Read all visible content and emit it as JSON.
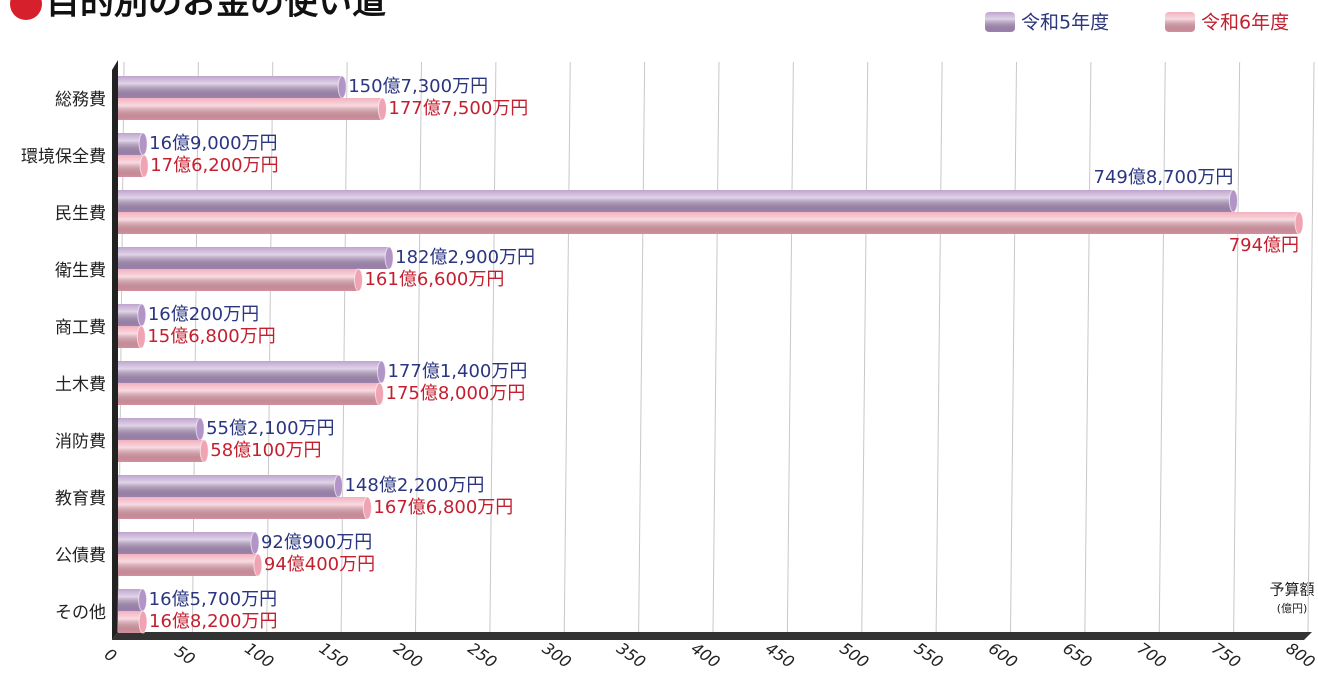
{
  "chart_data": {
    "type": "bar",
    "orientation": "horizontal",
    "title": "目的別のお金の使い道",
    "x_label": "予算額",
    "x_unit": "(億円)",
    "categories": [
      "総務費",
      "環境保全費",
      "民生費",
      "衛生費",
      "商工費",
      "土木費",
      "消防費",
      "教育費",
      "公債費",
      "その他"
    ],
    "series": [
      {
        "name": "令和5年度",
        "color": "#b394c6",
        "label_color": "#2b3580",
        "values": [
          150.73,
          16.9,
          749.87,
          182.29,
          16.02,
          177.14,
          55.21,
          148.22,
          92.09,
          16.57
        ],
        "value_labels": [
          "150億7,300万円",
          "16億9,000万円",
          "749億8,700万円",
          "182億2,900万円",
          "16億200万円",
          "177億1,400万円",
          "55億2,100万円",
          "148億2,200万円",
          "92億900万円",
          "16億5,700万円"
        ]
      },
      {
        "name": "令和6年度",
        "color": "#f0a3b3",
        "label_color": "#c41f2f",
        "values": [
          177.75,
          17.62,
          794,
          161.66,
          15.68,
          175.8,
          58.01,
          167.68,
          94.04,
          16.82
        ],
        "value_labels": [
          "177億7,500万円",
          "17億6,200万円",
          "794億円",
          "161億6,600万円",
          "15億6,800万円",
          "175億8,000万円",
          "58億100万円",
          "167億6,800万円",
          "94億400万円",
          "16億8,200万円"
        ]
      }
    ],
    "xlim": [
      0,
      800
    ],
    "xticks": [
      0,
      50,
      100,
      150,
      200,
      250,
      300,
      350,
      400,
      450,
      500,
      550,
      600,
      650,
      700,
      750,
      800
    ],
    "grid": true,
    "legend": "top-right"
  }
}
